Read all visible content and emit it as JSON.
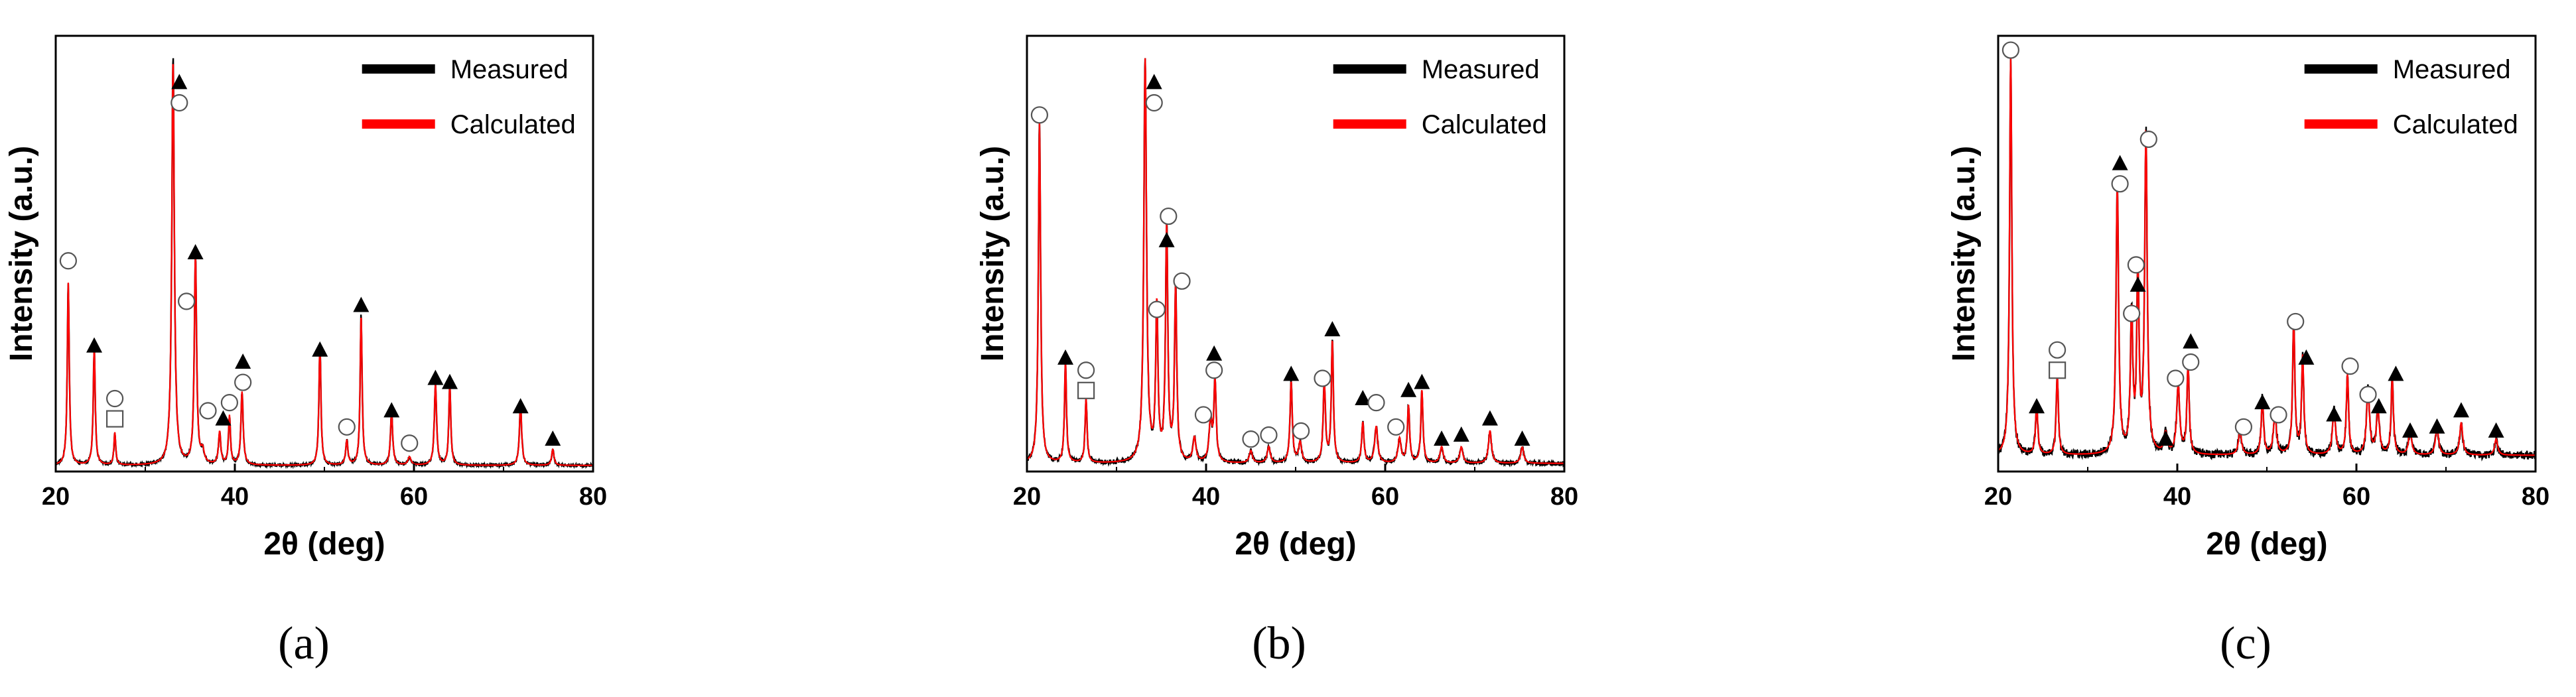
{
  "figure": {
    "panel_labels": [
      "(a)",
      "(b)",
      "(c)"
    ]
  },
  "legend_colors": {
    "measured": "#000000",
    "calculated": "#ff0000"
  },
  "chart_data": [
    {
      "type": "line",
      "panel": "(a)",
      "xlabel": "2θ (deg)",
      "ylabel": "Intensity (a.u.)",
      "xlim": [
        20,
        80
      ],
      "ylim": [
        0,
        100
      ],
      "xticks": [
        20,
        40,
        60,
        80
      ],
      "legend": [
        "Measured",
        "Calculated"
      ],
      "legend_position": "top-right",
      "series": [
        {
          "name": "Measured",
          "color": "#000000"
        },
        {
          "name": "Calculated",
          "color": "#ff0000"
        }
      ],
      "background": 1.5,
      "noise": 0.3,
      "peaks": [
        [
          21.4,
          45,
          0.13
        ],
        [
          24.3,
          29,
          0.13
        ],
        [
          26.6,
          8,
          0.12
        ],
        [
          33.1,
          100,
          0.17
        ],
        [
          35.6,
          52,
          0.15
        ],
        [
          36.4,
          3,
          0.2
        ],
        [
          38.3,
          8,
          0.15
        ],
        [
          39.4,
          12,
          0.13
        ],
        [
          40.8,
          18,
          0.15
        ],
        [
          49.5,
          30,
          0.13
        ],
        [
          52.5,
          6,
          0.15
        ],
        [
          54.1,
          37,
          0.13
        ],
        [
          57.5,
          13,
          0.15
        ],
        [
          59.5,
          2,
          0.2
        ],
        [
          62.4,
          20,
          0.15
        ],
        [
          64.0,
          20,
          0.13
        ],
        [
          71.9,
          15,
          0.15
        ],
        [
          75.5,
          4,
          0.15
        ]
      ],
      "markers": [
        {
          "type": "circle",
          "x": 21.4,
          "y": 52
        },
        {
          "type": "triangle",
          "x": 24.3,
          "y": 31
        },
        {
          "type": "circle",
          "x": 26.6,
          "y": 18
        },
        {
          "type": "square",
          "x": 26.6,
          "y": 13
        },
        {
          "type": "triangle",
          "x": 33.8,
          "y": 96
        },
        {
          "type": "circle",
          "x": 33.8,
          "y": 91
        },
        {
          "type": "circle",
          "x": 34.6,
          "y": 42
        },
        {
          "type": "triangle",
          "x": 35.6,
          "y": 54
        },
        {
          "type": "circle",
          "x": 37.0,
          "y": 15
        },
        {
          "type": "triangle",
          "x": 38.7,
          "y": 13
        },
        {
          "type": "circle",
          "x": 39.4,
          "y": 17
        },
        {
          "type": "circle",
          "x": 40.9,
          "y": 22
        },
        {
          "type": "triangle",
          "x": 40.9,
          "y": 27
        },
        {
          "type": "triangle",
          "x": 49.5,
          "y": 30
        },
        {
          "type": "circle",
          "x": 52.5,
          "y": 11
        },
        {
          "type": "triangle",
          "x": 54.1,
          "y": 41
        },
        {
          "type": "triangle",
          "x": 57.5,
          "y": 15
        },
        {
          "type": "circle",
          "x": 59.5,
          "y": 7
        },
        {
          "type": "triangle",
          "x": 62.4,
          "y": 23
        },
        {
          "type": "triangle",
          "x": 64.0,
          "y": 22
        },
        {
          "type": "triangle",
          "x": 71.9,
          "y": 16
        },
        {
          "type": "triangle",
          "x": 75.5,
          "y": 8
        }
      ]
    },
    {
      "type": "line",
      "panel": "(b)",
      "xlabel": "2θ (deg)",
      "ylabel": "Intensity (a.u.)",
      "xlim": [
        20,
        80
      ],
      "ylim": [
        0,
        100
      ],
      "xticks": [
        20,
        40,
        60,
        80
      ],
      "legend": [
        "Measured",
        "Calculated"
      ],
      "legend_position": "top-right",
      "series": [
        {
          "name": "Measured",
          "color": "#000000"
        },
        {
          "name": "Calculated",
          "color": "#ff0000"
        }
      ],
      "background": 2.0,
      "noise": 0.5,
      "peaks": [
        [
          21.4,
          84,
          0.15
        ],
        [
          24.3,
          25,
          0.13
        ],
        [
          26.6,
          16,
          0.13
        ],
        [
          33.2,
          100,
          0.18
        ],
        [
          34.5,
          38,
          0.15
        ],
        [
          35.6,
          58,
          0.15
        ],
        [
          36.6,
          43,
          0.15
        ],
        [
          38.7,
          6,
          0.2
        ],
        [
          40.5,
          10,
          0.2
        ],
        [
          41.0,
          20,
          0.15
        ],
        [
          45.0,
          3,
          0.2
        ],
        [
          47.0,
          4,
          0.2
        ],
        [
          49.5,
          20,
          0.15
        ],
        [
          50.5,
          5,
          0.2
        ],
        [
          53.2,
          20,
          0.15
        ],
        [
          54.1,
          30,
          0.14
        ],
        [
          57.5,
          10,
          0.15
        ],
        [
          59.0,
          9,
          0.2
        ],
        [
          61.6,
          6,
          0.2
        ],
        [
          62.6,
          14,
          0.15
        ],
        [
          64.1,
          18,
          0.14
        ],
        [
          66.3,
          4,
          0.2
        ],
        [
          68.5,
          4,
          0.2
        ],
        [
          71.7,
          8,
          0.2
        ],
        [
          75.3,
          4,
          0.2
        ]
      ],
      "markers": [
        {
          "type": "circle",
          "x": 21.4,
          "y": 88
        },
        {
          "type": "triangle",
          "x": 24.3,
          "y": 28
        },
        {
          "type": "circle",
          "x": 26.6,
          "y": 25
        },
        {
          "type": "square",
          "x": 26.6,
          "y": 20
        },
        {
          "type": "triangle",
          "x": 34.2,
          "y": 96
        },
        {
          "type": "circle",
          "x": 34.2,
          "y": 91
        },
        {
          "type": "circle",
          "x": 34.5,
          "y": 40
        },
        {
          "type": "circle",
          "x": 35.8,
          "y": 63
        },
        {
          "type": "triangle",
          "x": 35.6,
          "y": 57
        },
        {
          "type": "circle",
          "x": 37.3,
          "y": 47
        },
        {
          "type": "triangle",
          "x": 40.9,
          "y": 29
        },
        {
          "type": "circle",
          "x": 40.9,
          "y": 25
        },
        {
          "type": "circle",
          "x": 39.7,
          "y": 14
        },
        {
          "type": "circle",
          "x": 45.0,
          "y": 8
        },
        {
          "type": "circle",
          "x": 47.0,
          "y": 9
        },
        {
          "type": "triangle",
          "x": 49.5,
          "y": 24
        },
        {
          "type": "circle",
          "x": 50.6,
          "y": 10
        },
        {
          "type": "circle",
          "x": 53.0,
          "y": 23
        },
        {
          "type": "triangle",
          "x": 54.1,
          "y": 35
        },
        {
          "type": "triangle",
          "x": 57.5,
          "y": 18
        },
        {
          "type": "circle",
          "x": 59.0,
          "y": 17
        },
        {
          "type": "circle",
          "x": 61.2,
          "y": 11
        },
        {
          "type": "triangle",
          "x": 62.6,
          "y": 20
        },
        {
          "type": "triangle",
          "x": 64.1,
          "y": 22
        },
        {
          "type": "triangle",
          "x": 66.3,
          "y": 8
        },
        {
          "type": "triangle",
          "x": 68.5,
          "y": 9
        },
        {
          "type": "triangle",
          "x": 71.7,
          "y": 13
        },
        {
          "type": "triangle",
          "x": 75.3,
          "y": 8
        }
      ]
    },
    {
      "type": "line",
      "panel": "(c)",
      "xlabel": "2θ (deg)",
      "ylabel": "Intensity (a.u.)",
      "xlim": [
        20,
        80
      ],
      "ylim": [
        0,
        100
      ],
      "xticks": [
        20,
        40,
        60,
        80
      ],
      "legend": [
        "Measured",
        "Calculated"
      ],
      "legend_position": "top-right",
      "series": [
        {
          "name": "Measured",
          "color": "#000000"
        },
        {
          "name": "Calculated",
          "color": "#ff0000"
        }
      ],
      "background": 4.0,
      "noise": 1.0,
      "peaks": [
        [
          21.4,
          100,
          0.15
        ],
        [
          24.3,
          12,
          0.15
        ],
        [
          26.6,
          20,
          0.14
        ],
        [
          33.3,
          66,
          0.17
        ],
        [
          34.9,
          34,
          0.16
        ],
        [
          35.6,
          44,
          0.15
        ],
        [
          36.5,
          79,
          0.17
        ],
        [
          38.7,
          5,
          0.2
        ],
        [
          40.1,
          17,
          0.2
        ],
        [
          41.2,
          22,
          0.15
        ],
        [
          47.0,
          6,
          0.2
        ],
        [
          49.5,
          14,
          0.15
        ],
        [
          50.9,
          10,
          0.2
        ],
        [
          53.0,
          33,
          0.15
        ],
        [
          54.0,
          24,
          0.15
        ],
        [
          57.5,
          11,
          0.2
        ],
        [
          59.0,
          20,
          0.15
        ],
        [
          61.3,
          16,
          0.2
        ],
        [
          62.4,
          11,
          0.2
        ],
        [
          64.0,
          19,
          0.15
        ],
        [
          66.0,
          6,
          0.2
        ],
        [
          69.0,
          7,
          0.2
        ],
        [
          71.7,
          8,
          0.2
        ],
        [
          75.6,
          4,
          0.2
        ]
      ],
      "markers": [
        {
          "type": "circle",
          "x": 21.4,
          "y": 104
        },
        {
          "type": "circle",
          "x": 26.6,
          "y": 30
        },
        {
          "type": "square",
          "x": 26.6,
          "y": 25
        },
        {
          "type": "triangle",
          "x": 24.3,
          "y": 16
        },
        {
          "type": "triangle",
          "x": 33.6,
          "y": 76
        },
        {
          "type": "circle",
          "x": 33.6,
          "y": 71
        },
        {
          "type": "circle",
          "x": 35.4,
          "y": 51
        },
        {
          "type": "circle",
          "x": 34.9,
          "y": 39
        },
        {
          "type": "triangle",
          "x": 35.6,
          "y": 46
        },
        {
          "type": "circle",
          "x": 36.8,
          "y": 82
        },
        {
          "type": "triangle",
          "x": 38.7,
          "y": 8
        },
        {
          "type": "circle",
          "x": 39.8,
          "y": 23
        },
        {
          "type": "triangle",
          "x": 41.5,
          "y": 32
        },
        {
          "type": "circle",
          "x": 41.5,
          "y": 27
        },
        {
          "type": "circle",
          "x": 47.4,
          "y": 11
        },
        {
          "type": "triangle",
          "x": 49.5,
          "y": 17
        },
        {
          "type": "circle",
          "x": 51.3,
          "y": 14
        },
        {
          "type": "circle",
          "x": 53.2,
          "y": 37
        },
        {
          "type": "triangle",
          "x": 54.4,
          "y": 28
        },
        {
          "type": "triangle",
          "x": 57.5,
          "y": 14
        },
        {
          "type": "circle",
          "x": 59.3,
          "y": 26
        },
        {
          "type": "circle",
          "x": 61.3,
          "y": 19
        },
        {
          "type": "triangle",
          "x": 62.5,
          "y": 16
        },
        {
          "type": "triangle",
          "x": 64.4,
          "y": 24
        },
        {
          "type": "triangle",
          "x": 66.0,
          "y": 10
        },
        {
          "type": "triangle",
          "x": 69.0,
          "y": 11
        },
        {
          "type": "triangle",
          "x": 71.7,
          "y": 15
        },
        {
          "type": "triangle",
          "x": 75.6,
          "y": 10
        }
      ]
    }
  ]
}
